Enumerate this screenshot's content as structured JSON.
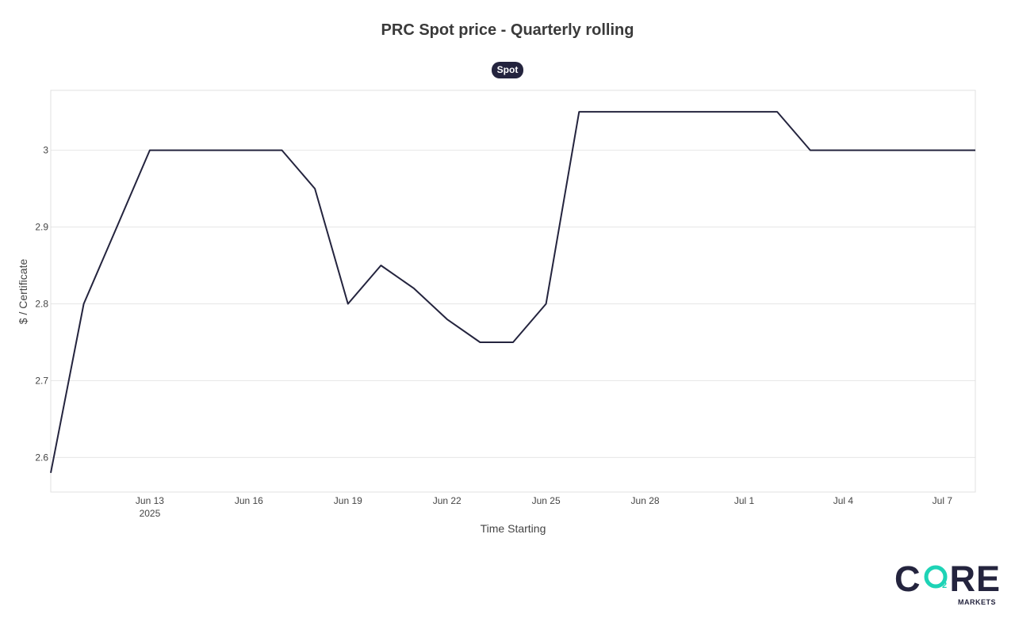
{
  "chart_data": {
    "type": "line",
    "title": "PRC Spot price - Quarterly rolling",
    "xlabel": "Time Starting",
    "ylabel": "$ / Certificate",
    "legend": {
      "placement": "top-center",
      "entries": [
        "Spot"
      ]
    },
    "grid": true,
    "x_type": "date",
    "xlim": [
      "2025-06-10",
      "2025-07-08"
    ],
    "ylim": [
      2.555,
      3.078
    ],
    "x_ticks": [
      {
        "date": "2025-06-13",
        "label": "Jun 13",
        "sublabel": "2025"
      },
      {
        "date": "2025-06-16",
        "label": "Jun 16"
      },
      {
        "date": "2025-06-19",
        "label": "Jun 19"
      },
      {
        "date": "2025-06-22",
        "label": "Jun 22"
      },
      {
        "date": "2025-06-25",
        "label": "Jun 25"
      },
      {
        "date": "2025-06-28",
        "label": "Jun 28"
      },
      {
        "date": "2025-07-01",
        "label": "Jul 1"
      },
      {
        "date": "2025-07-04",
        "label": "Jul 4"
      },
      {
        "date": "2025-07-07",
        "label": "Jul 7"
      }
    ],
    "y_ticks": [
      {
        "value": 2.6,
        "label": "2.6"
      },
      {
        "value": 2.7,
        "label": "2.7"
      },
      {
        "value": 2.8,
        "label": "2.8"
      },
      {
        "value": 2.9,
        "label": "2.9"
      },
      {
        "value": 3.0,
        "label": "3"
      }
    ],
    "series": [
      {
        "name": "Spot",
        "color": "#24243e",
        "x": [
          "2025-06-10",
          "2025-06-11",
          "2025-06-12",
          "2025-06-13",
          "2025-06-14",
          "2025-06-15",
          "2025-06-16",
          "2025-06-17",
          "2025-06-18",
          "2025-06-19",
          "2025-06-20",
          "2025-06-21",
          "2025-06-22",
          "2025-06-23",
          "2025-06-24",
          "2025-06-25",
          "2025-06-26",
          "2025-06-27",
          "2025-06-28",
          "2025-06-29",
          "2025-06-30",
          "2025-07-01",
          "2025-07-02",
          "2025-07-03",
          "2025-07-04",
          "2025-07-05",
          "2025-07-06",
          "2025-07-07",
          "2025-07-08"
        ],
        "values": [
          2.58,
          2.8,
          2.9,
          3.0,
          3.0,
          3.0,
          3.0,
          3.0,
          2.95,
          2.8,
          2.85,
          2.82,
          2.78,
          2.75,
          2.75,
          2.8,
          3.05,
          3.05,
          3.05,
          3.05,
          3.05,
          3.05,
          3.05,
          3.0,
          3.0,
          3.0,
          3.0,
          3.0,
          3.0
        ]
      }
    ]
  },
  "logo": {
    "word": "CORE",
    "subscript": "2",
    "sub": "MARKETS"
  },
  "colors": {
    "line": "#24243e",
    "accent": "#1ed3b6",
    "grid": "#e6e6e6"
  }
}
